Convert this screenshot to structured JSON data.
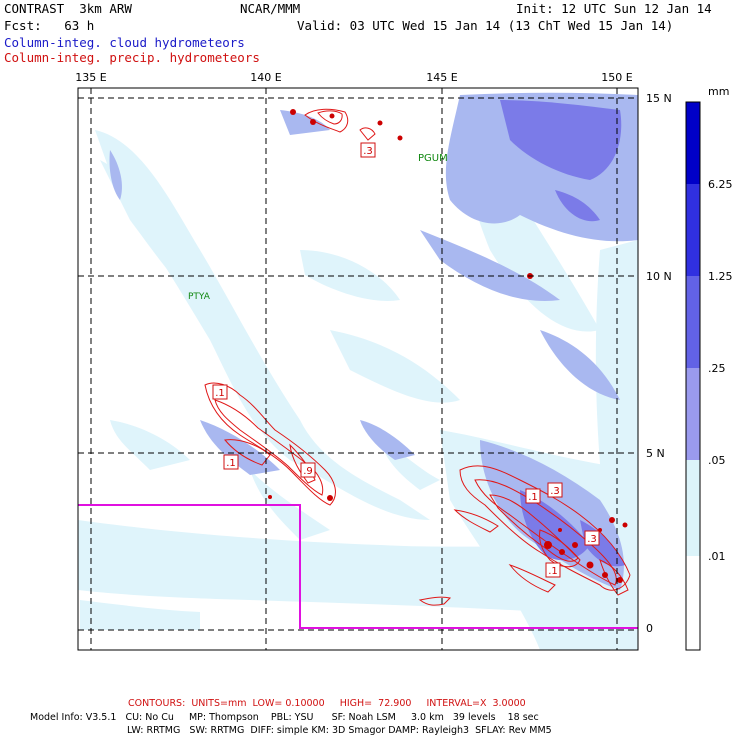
{
  "header": {
    "model_title": "CONTRAST  3km ARW",
    "center": "NCAR/MMM",
    "init": "Init: 12 UTC Sun 12 Jan 14",
    "fcst": "Fcst:   63 h",
    "valid": "Valid: 03 UTC Wed 15 Jan 14 (13 ChT Wed 15 Jan 14)",
    "field1": "Column-integ. cloud hydrometeors",
    "field2": "Column-integ. precip. hydrometeors"
  },
  "map": {
    "lon_labels": [
      "135 E",
      "140 E",
      "145 E",
      "150 E"
    ],
    "lat_labels": [
      "15 N",
      "10 N",
      "5 N",
      "0"
    ],
    "stations": [
      "PGUM",
      "PTYA"
    ],
    "contour_labels": [
      ".3",
      ".1",
      ".1",
      ".9",
      ".1",
      ".3",
      ".3",
      ".1"
    ],
    "colors": {
      "shade1": "#dff4fb",
      "shade2": "#a9b8f0",
      "shade3": "#7b7be8",
      "precip": "#e01818",
      "boundary": "#e010e0",
      "station": "#118811"
    }
  },
  "colorbar": {
    "units": "mm",
    "labels": [
      "6.25",
      "1.25",
      ".25",
      ".05",
      ".01"
    ],
    "colors": [
      "#0000c8",
      "#3030e0",
      "#6262e6",
      "#9a9aee",
      "#dcf4fa",
      "#ffffff"
    ]
  },
  "footer": {
    "contours": "CONTOURS:  UNITS=mm  LOW= 0.10000     HIGH=  72.900     INTERVAL=X  3.0000",
    "line1": "Model Info: V3.5.1   CU: No Cu     MP: Thompson    PBL: YSU      SF: Noah LSM     3.0 km   39 levels    18 sec",
    "line2": "LW: RRTMG   SW: RRTMG  DIFF: simple KM: 3D Smagor DAMP: Rayleigh3  SFLAY: Rev MM5"
  }
}
